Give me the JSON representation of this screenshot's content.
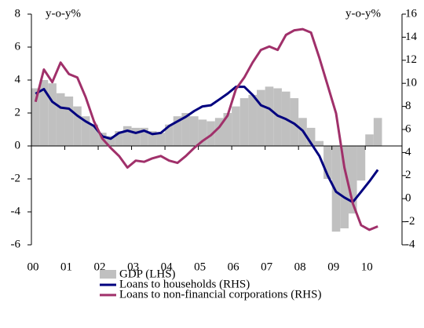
{
  "chart_data": {
    "type": "bar-line",
    "y_label": "y-o-y%",
    "y2_label": "y-o-y%",
    "x": [
      0.125,
      0.375,
      0.625,
      0.875,
      1.125,
      1.375,
      1.625,
      1.875,
      2.125,
      2.375,
      2.625,
      2.875,
      3.125,
      3.375,
      3.625,
      3.875,
      4.125,
      4.375,
      4.625,
      4.875,
      5.125,
      5.375,
      5.625,
      5.875,
      6.125,
      6.375,
      6.625,
      6.875,
      7.125,
      7.375,
      7.625,
      7.875,
      8.125,
      8.375,
      8.625,
      8.875,
      9.125,
      9.375,
      9.625,
      9.875,
      10.125,
      10.375
    ],
    "xlim": [
      0,
      11.1
    ],
    "xticks": [
      {
        "value": 0,
        "label": "00"
      },
      {
        "value": 1,
        "label": "01"
      },
      {
        "value": 2,
        "label": "02"
      },
      {
        "value": 3,
        "label": "03"
      },
      {
        "value": 4,
        "label": "04"
      },
      {
        "value": 5,
        "label": "05"
      },
      {
        "value": 6,
        "label": "06"
      },
      {
        "value": 7,
        "label": "07"
      },
      {
        "value": 8,
        "label": "08"
      },
      {
        "value": 9,
        "label": "09"
      },
      {
        "value": 10,
        "label": "10"
      }
    ],
    "ylim": [
      -6,
      8
    ],
    "yticks": [
      -6,
      -4,
      -2,
      0,
      2,
      4,
      6,
      8
    ],
    "y2lim": [
      -4,
      16
    ],
    "y2ticks": [
      -4,
      -2,
      0,
      2,
      4,
      6,
      8,
      10,
      12,
      14,
      16
    ],
    "series": [
      {
        "name": "GDP (LHS)",
        "color": "#c0c0c0",
        "kind": "bar",
        "values": [
          3.5,
          4.0,
          3.8,
          3.2,
          3.0,
          2.4,
          1.8,
          1.3,
          0.8,
          0.6,
          0.9,
          1.2,
          1.1,
          1.1,
          0.9,
          0.8,
          1.3,
          1.8,
          2.0,
          1.8,
          1.6,
          1.5,
          1.7,
          2.0,
          2.4,
          2.9,
          3.1,
          3.4,
          3.6,
          3.5,
          3.3,
          2.9,
          1.7,
          1.1,
          0.3,
          -2.0,
          -5.2,
          -5.0,
          -4.1,
          -2.1,
          0.7,
          1.7
        ]
      },
      {
        "name": "Loans to households (RHS)",
        "color": "#00007f",
        "kind": "line",
        "axis": "y2",
        "values": [
          9.1,
          9.5,
          8.4,
          7.9,
          7.8,
          7.2,
          6.7,
          6.3,
          5.4,
          5.2,
          5.7,
          5.9,
          5.7,
          5.9,
          5.6,
          5.7,
          6.3,
          6.7,
          7.1,
          7.6,
          8.0,
          8.1,
          8.6,
          9.1,
          9.7,
          9.7,
          9.0,
          8.1,
          7.8,
          7.2,
          6.9,
          6.5,
          5.9,
          4.8,
          3.7,
          2.0,
          0.6,
          0.1,
          -0.3,
          0.6,
          1.5,
          2.5
        ]
      },
      {
        "name": "Loans to non-financial corporations (RHS)",
        "color": "#a0306a",
        "kind": "line",
        "axis": "y2",
        "values": [
          8.4,
          11.2,
          10.1,
          11.8,
          10.8,
          10.5,
          8.8,
          6.7,
          5.2,
          4.4,
          3.7,
          2.7,
          3.3,
          3.2,
          3.5,
          3.7,
          3.3,
          3.1,
          3.7,
          4.4,
          5.0,
          5.5,
          6.2,
          7.2,
          9.5,
          10.5,
          11.8,
          12.9,
          13.2,
          12.9,
          14.2,
          14.6,
          14.7,
          14.4,
          12.2,
          9.8,
          7.4,
          2.7,
          -0.4,
          -2.3,
          -2.7,
          -2.4
        ]
      }
    ]
  }
}
